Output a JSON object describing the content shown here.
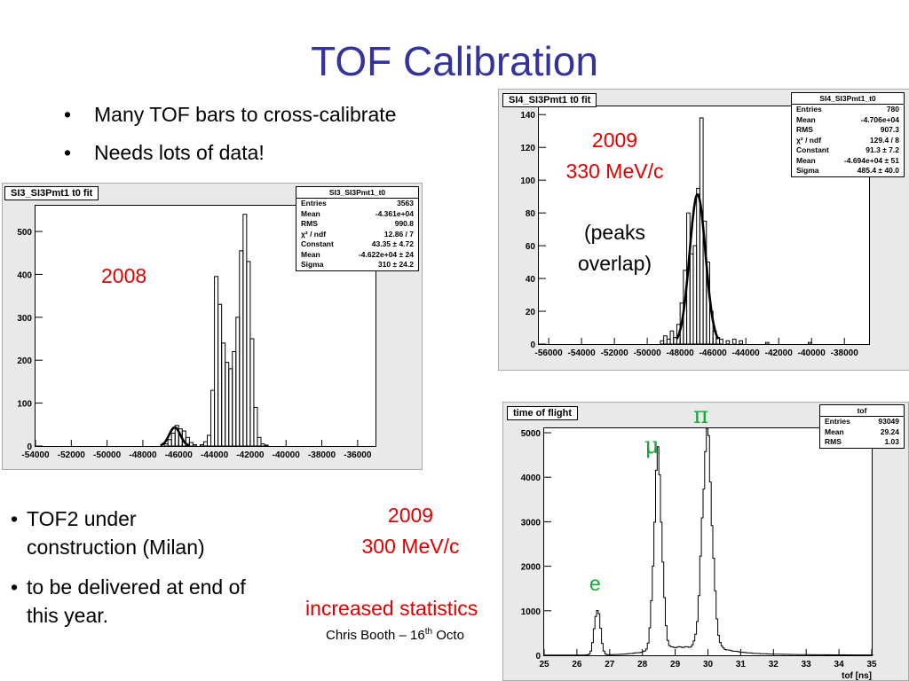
{
  "slide": {
    "title": "TOF Calibration",
    "bullets_top": [
      "Many TOF bars to cross-calibrate",
      "Needs lots of data!"
    ],
    "bullets_bottom": [
      {
        "line1": "TOF2 under",
        "line2": "construction (Milan)"
      },
      {
        "line1": "to be delivered at end of",
        "line2": "this year."
      }
    ],
    "footer": {
      "prefix": "Chris Booth – 16",
      "sup": "th",
      "suffix": " Octo"
    },
    "bullet_glyph": "•"
  },
  "annotations": {
    "p2008": "2008",
    "p2009_year": "2009",
    "p2009_energy": "330 MeV/c",
    "peaks_l1": "(peaks",
    "peaks_l2": "overlap)",
    "tof_year": "2009",
    "tof_energy": "300 MeV/c",
    "tof_stats": "increased statistics",
    "pi": "π",
    "mu": "μ",
    "e": "e"
  },
  "colors": {
    "title": "#333399",
    "annotation_red": "#e00000",
    "annotation_green": "#11aa33",
    "panel": "#e9e9e9"
  },
  "chart_data": [
    {
      "type": "histogram",
      "title": "SI3_SI3Pmt1  t0 fit",
      "stats": {
        "name": "SI3_SI3Pmt1_t0",
        "rows": [
          [
            "Entries",
            "3563"
          ],
          [
            "Mean",
            "-4.361e+04"
          ],
          [
            "RMS",
            "990.8"
          ],
          [
            "χ² / ndf",
            "12.86 / 7"
          ],
          [
            "Constant",
            "43.35 ± 4.72"
          ],
          [
            "Mean",
            "-4.622e+04 ± 24"
          ],
          [
            "Sigma",
            "310 ± 24.2"
          ]
        ]
      },
      "xlim": [
        -54000,
        -35000
      ],
      "ylim": [
        0,
        560
      ],
      "xticks": [
        -54000,
        -52000,
        -50000,
        -48000,
        -46000,
        -44000,
        -42000,
        -40000,
        -38000,
        -36000
      ],
      "xtick_labels": [
        "-54000",
        "-52000",
        "-50000",
        "-48000",
        "-46000",
        "-44000",
        "-42000",
        "-40000",
        "-38000",
        "-36000"
      ],
      "yticks": [
        0,
        100,
        200,
        300,
        400,
        500
      ],
      "ytick_labels": [
        "0",
        "100",
        "200",
        "300",
        "400",
        "500"
      ],
      "bins": [
        [
          -46800,
          5
        ],
        [
          -46600,
          15
        ],
        [
          -46400,
          30
        ],
        [
          -46200,
          48
        ],
        [
          -46000,
          40
        ],
        [
          -45800,
          35
        ],
        [
          -45600,
          20
        ],
        [
          -45400,
          8
        ],
        [
          -45200,
          3
        ],
        [
          -44800,
          3
        ],
        [
          -44600,
          10
        ],
        [
          -44400,
          25
        ],
        [
          -44200,
          130
        ],
        [
          -44000,
          395
        ],
        [
          -43800,
          330
        ],
        [
          -43600,
          240
        ],
        [
          -43400,
          195
        ],
        [
          -43200,
          180
        ],
        [
          -43000,
          220
        ],
        [
          -42800,
          300
        ],
        [
          -42600,
          455
        ],
        [
          -42400,
          540
        ],
        [
          -42200,
          430
        ],
        [
          -42000,
          250
        ],
        [
          -41800,
          90
        ],
        [
          -41600,
          20
        ],
        [
          -41400,
          5
        ],
        [
          -41200,
          2
        ]
      ],
      "fit": {
        "constant": 43.35,
        "mean": -46220,
        "sigma": 310
      }
    },
    {
      "type": "histogram",
      "title": "SI4_SI3Pmt1 t0 fit",
      "stats": {
        "name": "SI4_SI3Pmt1_t0",
        "rows": [
          [
            "Entries",
            "780"
          ],
          [
            "Mean",
            "-4.706e+04"
          ],
          [
            "RMS",
            "907.3"
          ],
          [
            "χ² / ndf",
            "129.4 / 8"
          ],
          [
            "Constant",
            "91.3 ± 7.2"
          ],
          [
            "Mean",
            "-4.694e+04 ± 51"
          ],
          [
            "Sigma",
            "485.4 ± 40.0"
          ]
        ]
      },
      "xlim": [
        -56600,
        -36500
      ],
      "ylim": [
        0,
        145
      ],
      "xticks": [
        -56000,
        -54000,
        -52000,
        -50000,
        -48000,
        -46000,
        -44000,
        -42000,
        -40000,
        -38000
      ],
      "xtick_labels": [
        "-56000",
        "-54000",
        "-52000",
        "-50000",
        "-48000",
        "-46000",
        "-44000",
        "-42000",
        "-40000",
        "-38000"
      ],
      "yticks": [
        0,
        20,
        40,
        60,
        80,
        100,
        120,
        140
      ],
      "ytick_labels": [
        "0",
        "20",
        "40",
        "60",
        "80",
        "100",
        "120",
        "140"
      ],
      "bins": [
        [
          -49200,
          2
        ],
        [
          -49000,
          5
        ],
        [
          -48800,
          3
        ],
        [
          -48600,
          8
        ],
        [
          -48400,
          4
        ],
        [
          -48200,
          12
        ],
        [
          -48000,
          25
        ],
        [
          -47800,
          45
        ],
        [
          -47600,
          80
        ],
        [
          -47400,
          55
        ],
        [
          -47200,
          60
        ],
        [
          -47000,
          95
        ],
        [
          -46800,
          138
        ],
        [
          -46600,
          75
        ],
        [
          -46400,
          50
        ],
        [
          -46200,
          20
        ],
        [
          -46000,
          8
        ],
        [
          -45800,
          4
        ],
        [
          -45600,
          3
        ],
        [
          -45200,
          2
        ],
        [
          -44800,
          3
        ],
        [
          -44400,
          2
        ],
        [
          -42800,
          1
        ],
        [
          -40200,
          1
        ]
      ],
      "fit": {
        "constant": 91.3,
        "mean": -46940,
        "sigma": 485.4
      }
    },
    {
      "type": "histogram",
      "title": "time of flight",
      "stats": {
        "name": "tof",
        "rows": [
          [
            "Entries",
            "93049"
          ],
          [
            "Mean",
            "29.24"
          ],
          [
            "RMS",
            "1.03"
          ]
        ]
      },
      "xlabel": "tof [ns]",
      "xlim": [
        25,
        35
      ],
      "ylim": [
        0,
        5100
      ],
      "xticks": [
        25,
        26,
        27,
        28,
        29,
        30,
        31,
        32,
        33,
        34,
        35
      ],
      "xtick_labels": [
        "25",
        "26",
        "27",
        "28",
        "29",
        "30",
        "31",
        "32",
        "33",
        "34",
        "35"
      ],
      "yticks": [
        0,
        1000,
        2000,
        3000,
        4000,
        5000
      ],
      "ytick_labels": [
        "0",
        "1000",
        "2000",
        "3000",
        "4000",
        "5000"
      ],
      "peaks": [
        {
          "name": "e",
          "mean": 26.6,
          "sigma": 0.09,
          "height": 1050
        },
        {
          "name": "mu",
          "mean": 28.45,
          "sigma": 0.12,
          "height": 4300
        },
        {
          "name": "pi",
          "mean": 29.95,
          "sigma": 0.15,
          "height": 4750
        }
      ]
    }
  ]
}
